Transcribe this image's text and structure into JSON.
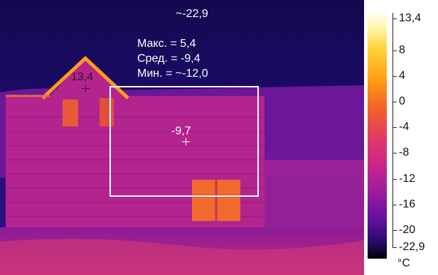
{
  "readout": {
    "max_label": "Макс. = 5,4",
    "avg_label": "Сред. = -9,4",
    "min_label": "Мин. = ~-12,0"
  },
  "spots": {
    "top_value": "~-22,9",
    "hot_value": "13,4",
    "center_value": "-9,7"
  },
  "scale": {
    "ticks": [
      "13,4",
      "8",
      "4",
      "0",
      "-4",
      "-8",
      "-12",
      "-16",
      "-20",
      "-22,9"
    ],
    "unit": "°C"
  },
  "palette": {
    "sky": "#1b0b6a",
    "wall": "#b8228e",
    "hot": "#ffb000",
    "crosshair_hot": "#4a1d1d",
    "overlay": "#ffffff"
  }
}
